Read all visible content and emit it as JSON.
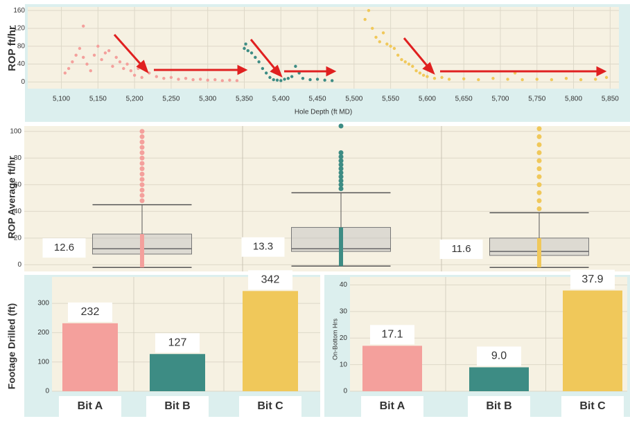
{
  "chart_data": [
    {
      "type": "scatter",
      "ylabel": "ROP  ft/hr",
      "xlabel": "Hole Depth (ft MD)",
      "xlim": [
        5054,
        5862
      ],
      "ylim": [
        -15,
        168
      ],
      "xticks": [
        {
          "value": 5100,
          "label": "5,100"
        },
        {
          "value": 5150,
          "label": "5,150"
        },
        {
          "value": 5200,
          "label": "5,200"
        },
        {
          "value": 5250,
          "label": "5,250"
        },
        {
          "value": 5300,
          "label": "5,300"
        },
        {
          "value": 5350,
          "label": "5,350"
        },
        {
          "value": 5400,
          "label": "5,400"
        },
        {
          "value": 5450,
          "label": "5,450"
        },
        {
          "value": 5500,
          "label": "5,500"
        },
        {
          "value": 5550,
          "label": "5,550"
        },
        {
          "value": 5600,
          "label": "5,600"
        },
        {
          "value": 5650,
          "label": "5,650"
        },
        {
          "value": 5700,
          "label": "5,700"
        },
        {
          "value": 5750,
          "label": "5,750"
        },
        {
          "value": 5800,
          "label": "5,800"
        },
        {
          "value": 5850,
          "label": "5,850"
        }
      ],
      "yticks": [
        0,
        40,
        80,
        120,
        160
      ],
      "grid": true,
      "series": [
        {
          "color": "#f4a09c",
          "x": [
            5105,
            5110,
            5115,
            5120,
            5125,
            5130,
            5130,
            5135,
            5140,
            5145,
            5150,
            5155,
            5160,
            5165,
            5170,
            5175,
            5180,
            5185,
            5190,
            5195,
            5200,
            5205,
            5210,
            5220,
            5230,
            5240,
            5250,
            5260,
            5270,
            5280,
            5290,
            5300,
            5310,
            5320,
            5330,
            5340
          ],
          "values": [
            20,
            30,
            45,
            60,
            75,
            55,
            125,
            40,
            25,
            60,
            80,
            50,
            65,
            70,
            35,
            55,
            45,
            30,
            40,
            25,
            15,
            30,
            10,
            20,
            12,
            8,
            10,
            6,
            8,
            5,
            6,
            4,
            5,
            3,
            4,
            3
          ]
        },
        {
          "color": "#3d8c84",
          "x": [
            5350,
            5352,
            5355,
            5360,
            5365,
            5370,
            5375,
            5380,
            5385,
            5390,
            5395,
            5400,
            5405,
            5410,
            5415,
            5420,
            5425,
            5430,
            5440,
            5450,
            5460,
            5470
          ],
          "values": [
            75,
            85,
            70,
            65,
            55,
            45,
            30,
            20,
            10,
            5,
            4,
            3,
            6,
            8,
            12,
            35,
            20,
            8,
            5,
            6,
            4,
            3
          ]
        },
        {
          "color": "#f0c85a",
          "x": [
            5515,
            5520,
            5525,
            5530,
            5535,
            5540,
            5545,
            5550,
            5555,
            5560,
            5565,
            5570,
            5575,
            5580,
            5585,
            5590,
            5595,
            5600,
            5610,
            5620,
            5630,
            5650,
            5670,
            5690,
            5710,
            5720,
            5730,
            5750,
            5770,
            5790,
            5810,
            5830,
            5845
          ],
          "values": [
            140,
            160,
            120,
            100,
            90,
            110,
            85,
            80,
            75,
            60,
            50,
            45,
            40,
            35,
            25,
            20,
            15,
            12,
            8,
            10,
            6,
            7,
            5,
            8,
            6,
            20,
            5,
            6,
            5,
            8,
            5,
            6,
            10
          ]
        }
      ]
    },
    {
      "type": "box",
      "ylabel": "ROP  Average ft/hr",
      "ylim": [
        -5,
        104
      ],
      "yticks": [
        0,
        20,
        40,
        60,
        80,
        100
      ],
      "boxes": [
        {
          "color": "#f4a09c",
          "min": -2,
          "q1": 8,
          "median": 12,
          "q3": 23,
          "max": 45,
          "mean": 12.6,
          "outliers": [
            48,
            52,
            56,
            60,
            64,
            68,
            72,
            76,
            80,
            84,
            88,
            92,
            96,
            100
          ]
        },
        {
          "color": "#3d8c84",
          "min": -1,
          "q1": 10,
          "median": 12,
          "q3": 28,
          "max": 54,
          "mean": 13.3,
          "outliers": [
            57,
            60,
            63,
            66,
            69,
            72,
            75,
            78,
            81,
            84,
            104
          ]
        },
        {
          "color": "#f0c85a",
          "min": -2,
          "q1": 7,
          "median": 10,
          "q3": 20,
          "max": 39,
          "mean": 11.6,
          "outliers": [
            42,
            48,
            54,
            60,
            66,
            72,
            78,
            84,
            90,
            96,
            102
          ]
        }
      ]
    },
    {
      "type": "bar",
      "ylabel": "Footage Drilled (ft)",
      "categories": [
        "Bit A",
        "Bit B",
        "Bit C"
      ],
      "values": [
        232,
        127,
        342
      ],
      "colors": [
        "#f4a09c",
        "#3d8c84",
        "#f0c85a"
      ],
      "ylim": [
        0,
        390
      ],
      "yticks": [
        0,
        100,
        200,
        300
      ]
    },
    {
      "type": "bar",
      "ylabel": "On-Bottom Hrs",
      "categories": [
        "Bit A",
        "Bit B",
        "Bit C"
      ],
      "values": [
        17.1,
        9.0,
        37.9
      ],
      "value_labels": [
        "17.1",
        "9.0",
        "37.9"
      ],
      "colors": [
        "#f4a09c",
        "#3d8c84",
        "#f0c85a"
      ],
      "ylim": [
        0,
        43
      ],
      "yticks": [
        0,
        10,
        20,
        30,
        40
      ]
    }
  ]
}
